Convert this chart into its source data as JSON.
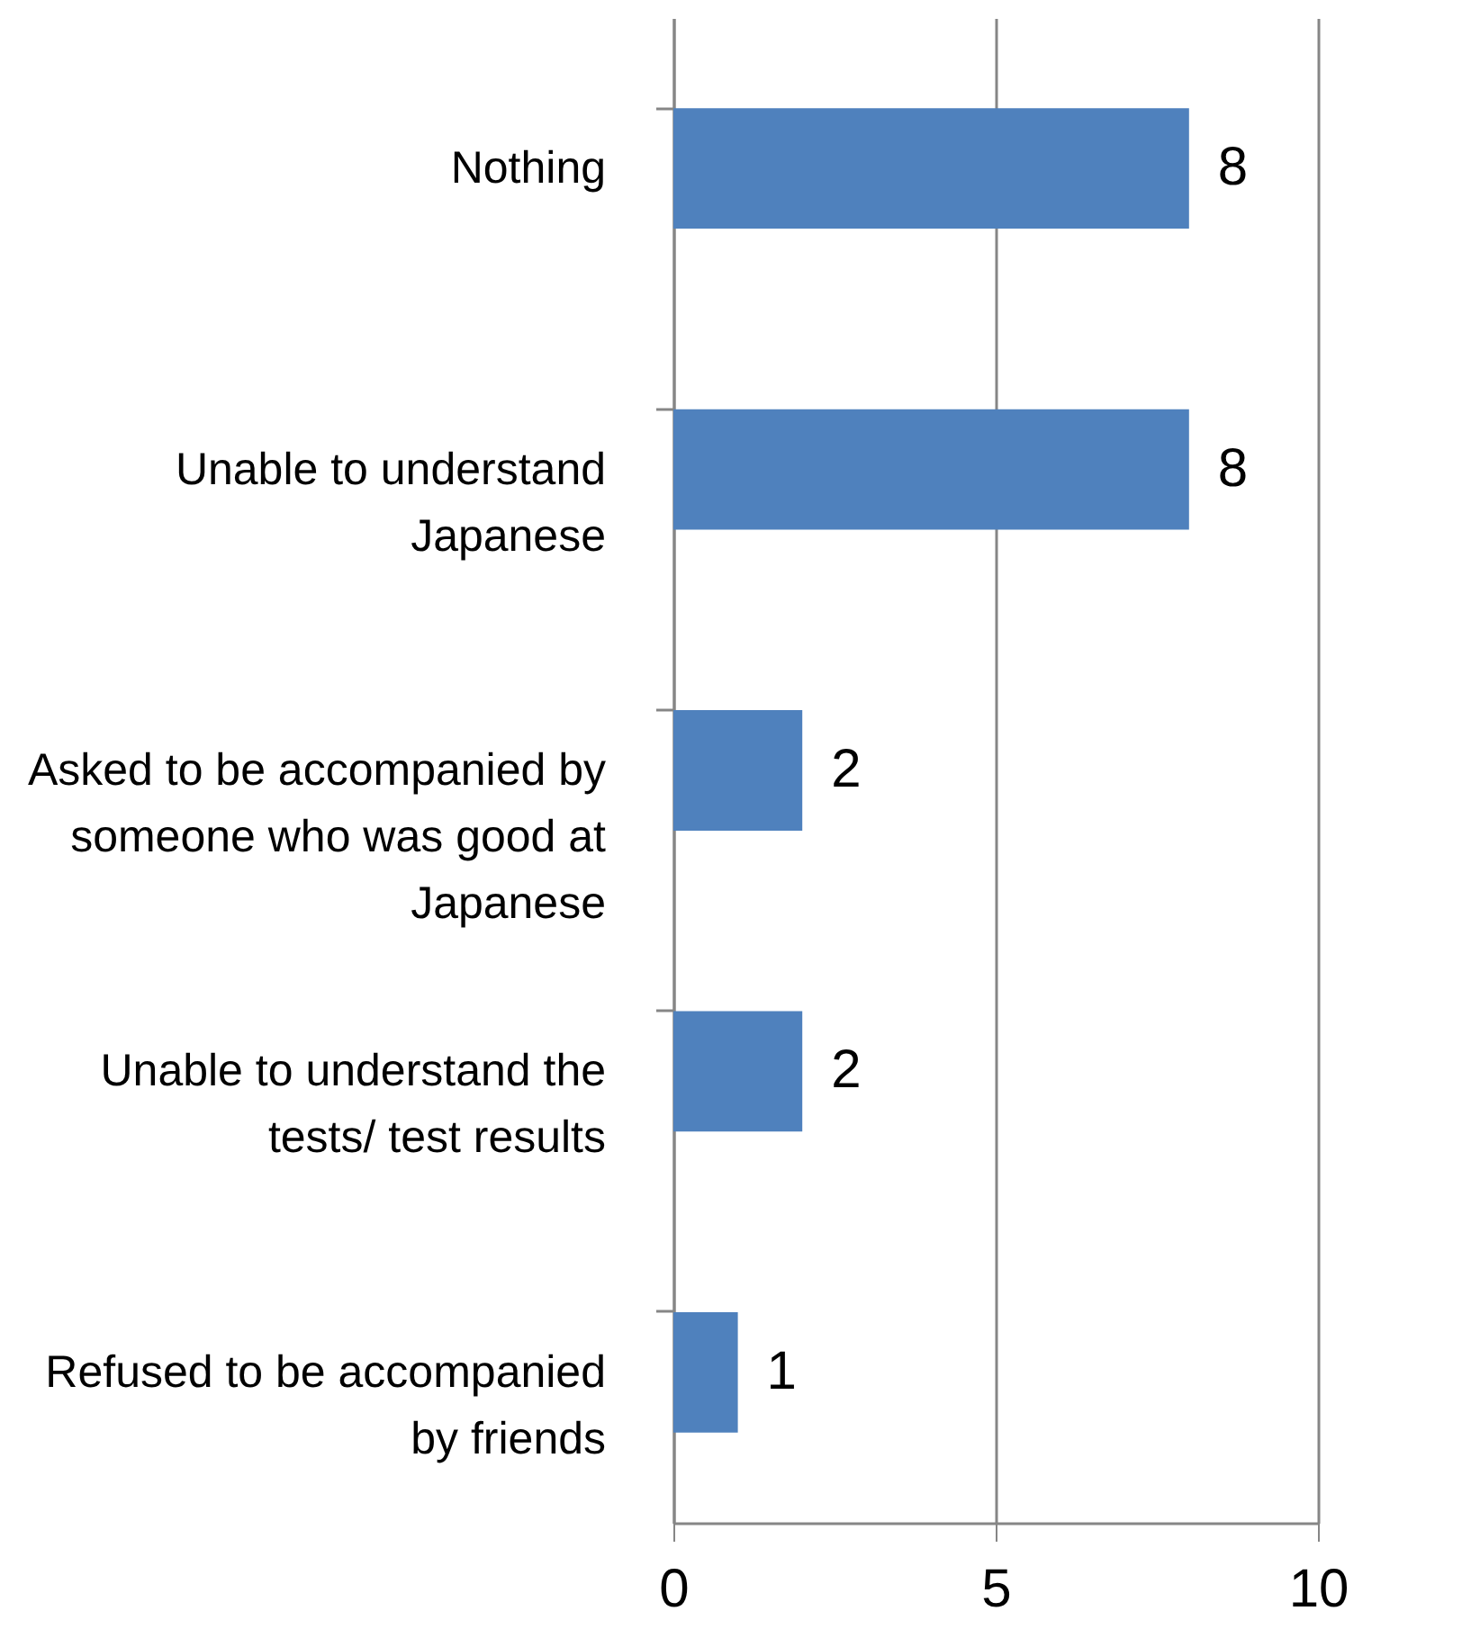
{
  "chart_data": {
    "type": "bar",
    "orientation": "horizontal",
    "categories": [
      "Nothing",
      "Unable to understand Japanese",
      "Asked to be accompanied by someone who was good at Japanese",
      "Unable to understand the tests/ test results",
      "Refused to be accompanied by friends"
    ],
    "values": [
      8,
      8,
      2,
      2,
      1
    ],
    "color": "#4f81bd",
    "xlim": [
      0,
      10
    ],
    "xticks": [
      0,
      5,
      10
    ],
    "grid": "x",
    "data_labels": true
  }
}
